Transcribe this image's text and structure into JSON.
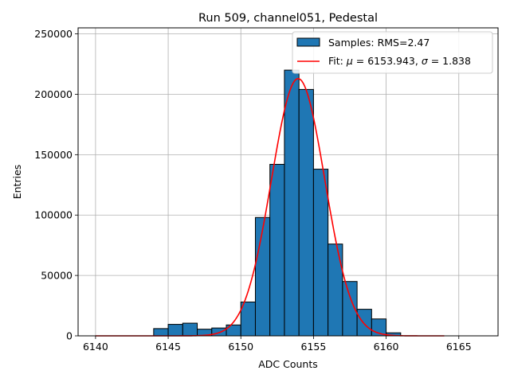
{
  "chart_data": {
    "type": "bar",
    "title": "Run 509, channel051, Pedestal",
    "xlabel": "ADC Counts",
    "ylabel": "Entries",
    "xlim": [
      6138.8,
      6167.7
    ],
    "ylim": [
      0,
      255000
    ],
    "xticks": [
      6140,
      6145,
      6150,
      6155,
      6160,
      6165
    ],
    "yticks": [
      0,
      50000,
      100000,
      150000,
      200000,
      250000
    ],
    "grid": true,
    "legend_position": "top-right",
    "colors": {
      "bars": "#1f77b4",
      "edge": "#000000",
      "fit": "#ff0000",
      "grid": "#b0b0b0"
    },
    "series": [
      {
        "name": "Samples: RMS=2.47",
        "kind": "histogram",
        "bin_width": 1,
        "bin_left_edges": [
          6144,
          6145,
          6146,
          6147,
          6148,
          6149,
          6150,
          6151,
          6152,
          6153,
          6154,
          6155,
          6156,
          6157,
          6158,
          6159,
          6160
        ],
        "values": [
          6000,
          9500,
          10500,
          5500,
          6500,
          9000,
          28000,
          98000,
          142000,
          220000,
          204000,
          138000,
          76000,
          45000,
          22000,
          14000,
          2500
        ]
      },
      {
        "name": "Fit: μ = 6153.943, σ = 1.838",
        "name_parts": {
          "prefix": "Fit: ",
          "mu_symbol": "μ",
          "mu_text": " = 6153.943, ",
          "sigma_symbol": "σ",
          "sigma_text": " = 1.838"
        },
        "kind": "gaussian",
        "mu": 6153.943,
        "sigma": 1.838,
        "amplitude": 213000,
        "x_range": [
          6140,
          6164
        ]
      }
    ]
  }
}
